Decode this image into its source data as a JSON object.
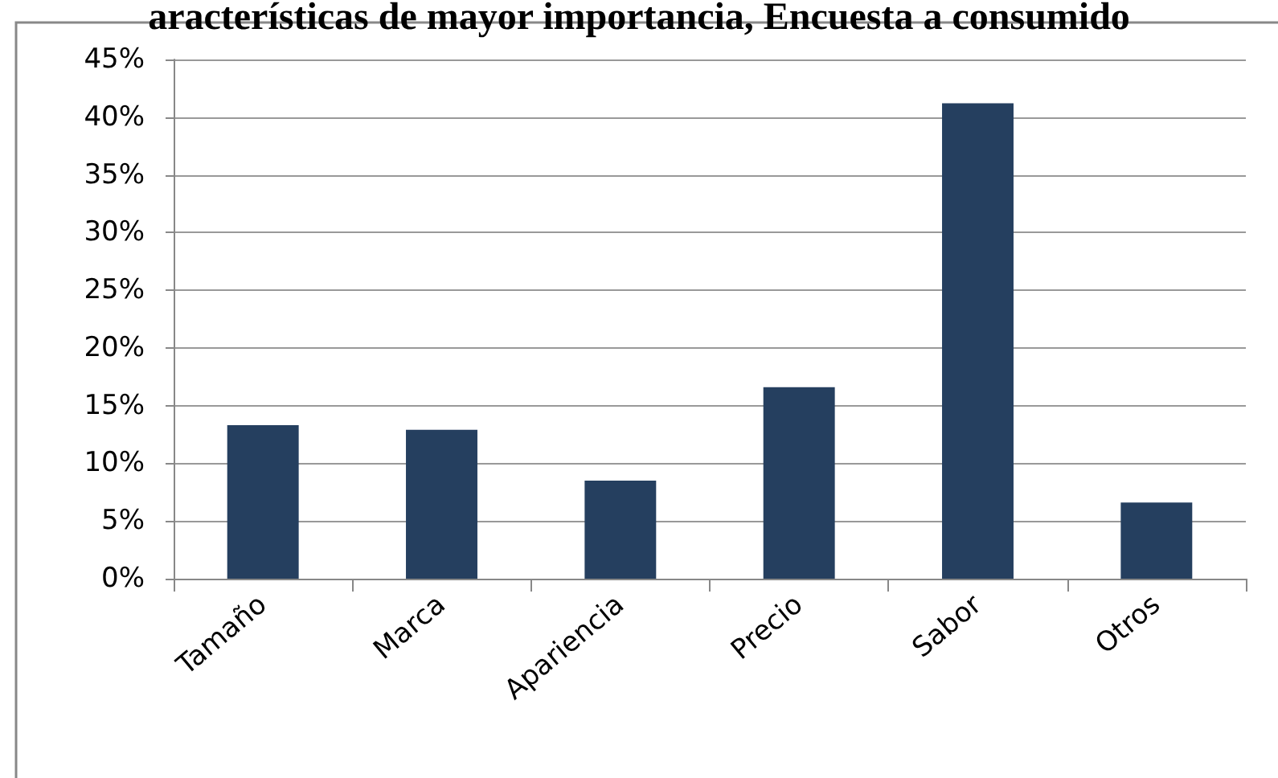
{
  "chart_data": {
    "type": "bar",
    "title": "aracterísticas de mayor importancia, Encuesta a consumido",
    "categories": [
      "Tamaño",
      "Marca",
      "Apariencia",
      "Precio",
      "Sabor",
      "Otros"
    ],
    "values": [
      13.3,
      12.9,
      8.5,
      16.6,
      41.2,
      6.6
    ],
    "color": "#253f5f",
    "ylim": [
      0,
      45
    ],
    "yticks": [
      {
        "value": 0,
        "label": "0%"
      },
      {
        "value": 5,
        "label": "5%"
      },
      {
        "value": 10,
        "label": "10%"
      },
      {
        "value": 15,
        "label": "15%"
      },
      {
        "value": 20,
        "label": "20%"
      },
      {
        "value": 25,
        "label": "25%"
      },
      {
        "value": 30,
        "label": "30%"
      },
      {
        "value": 35,
        "label": "35%"
      },
      {
        "value": 40,
        "label": "40%"
      },
      {
        "value": 45,
        "label": "45%"
      }
    ],
    "grid": "y"
  }
}
